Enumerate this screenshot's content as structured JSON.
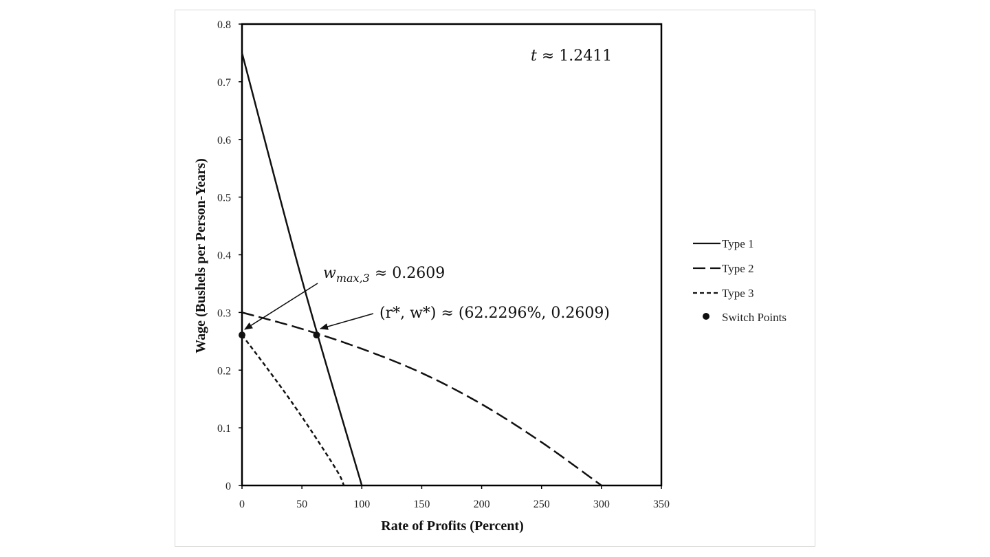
{
  "chart_data": {
    "type": "line",
    "title": "",
    "xlabel": "Rate of Profits (Percent)",
    "ylabel": "Wage (Bushels per Person-Years)",
    "xlim": [
      0,
      350
    ],
    "ylim": [
      0,
      0.8
    ],
    "x_ticks": [
      "0",
      "50",
      "100",
      "150",
      "200",
      "250",
      "300",
      "350"
    ],
    "y_ticks": [
      "0",
      "0.1",
      "0.2",
      "0.3",
      "0.4",
      "0.5",
      "0.6",
      "0.7",
      "0.8"
    ],
    "grid": false,
    "legend_position": "right",
    "series": [
      {
        "name": "Type 1",
        "style": "solid",
        "color": "#111111",
        "points": [
          [
            0,
            0.75
          ],
          [
            50,
            0.357
          ],
          [
            100,
            0.0
          ]
        ]
      },
      {
        "name": "Type 2",
        "style": "long-dash",
        "color": "#111111",
        "points": [
          [
            0,
            0.3
          ],
          [
            50,
            0.2715
          ],
          [
            100,
            0.237
          ],
          [
            150,
            0.195
          ],
          [
            200,
            0.141
          ],
          [
            250,
            0.075
          ],
          [
            300,
            0.0
          ]
        ]
      },
      {
        "name": "Type 3",
        "style": "short-dash",
        "color": "#111111",
        "points": [
          [
            0,
            0.2609
          ],
          [
            20,
            0.206
          ],
          [
            40,
            0.149
          ],
          [
            60,
            0.088
          ],
          [
            80,
            0.023
          ],
          [
            85,
            0.0
          ]
        ]
      }
    ],
    "switch_points": {
      "name": "Switch Points",
      "points": [
        [
          62.2296,
          0.2609
        ],
        [
          0,
          0.2609
        ]
      ]
    },
    "annotations": {
      "t": {
        "var": "t",
        "text": " ≈ 1.2411"
      },
      "wmax": {
        "var": "w",
        "sub": "max,3",
        "text": " ≈ 0.2609"
      },
      "switch": {
        "text": "(r*, w*) ≈ (62.2296%, 0.2609)"
      }
    }
  }
}
